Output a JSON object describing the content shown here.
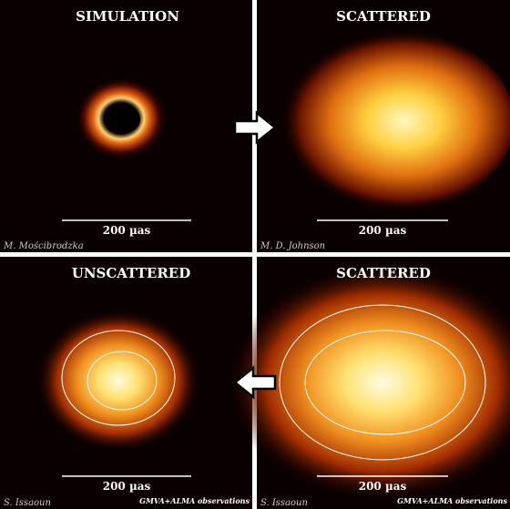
{
  "panels": [
    {
      "title": "SIMULATION",
      "scale_label": "200 µas",
      "credit": "M. Mościbrodzka"
    },
    {
      "title": "SCATTERED",
      "scale_label": "200 µas",
      "credit": "M. D. Johnson"
    },
    {
      "title": "UNSCATTERED",
      "scale_label": "200 µas",
      "credit": "S. Issaoun",
      "note": "GMVA+ALMA observations"
    },
    {
      "title": "SCATTERED",
      "scale_label": "200 µas",
      "credit": "S. Issaoun",
      "note": "GMVA+ALMA observations"
    }
  ]
}
